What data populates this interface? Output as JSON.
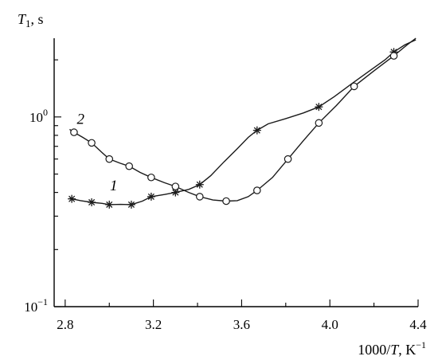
{
  "chart_data": {
    "type": "line",
    "title": "",
    "xlabel": "1000/T, K⁻¹",
    "ylabel": "T₁, s",
    "xlim": [
      2.75,
      4.4
    ],
    "ylim": [
      0.1,
      2.6
    ],
    "yscale": "log",
    "grid": false,
    "x_ticks": [
      {
        "value": 2.8,
        "label": "2.8"
      },
      {
        "value": 3.2,
        "label": "3.2"
      },
      {
        "value": 3.6,
        "label": "3.6"
      },
      {
        "value": 4.0,
        "label": "4.0"
      },
      {
        "value": 4.4,
        "label": "4.4"
      }
    ],
    "y_ticks": [
      {
        "value": 1.0,
        "base": "10",
        "exp": "0"
      },
      {
        "value": 0.1,
        "base": "10",
        "exp": "−1"
      }
    ],
    "series": [
      {
        "name": "1",
        "marker": "star",
        "points": [
          [
            2.83,
            0.37
          ],
          [
            2.92,
            0.355
          ],
          [
            3.0,
            0.345
          ],
          [
            3.1,
            0.345
          ],
          [
            3.19,
            0.38
          ],
          [
            3.3,
            0.4
          ],
          [
            3.41,
            0.44
          ],
          [
            3.67,
            0.85
          ],
          [
            3.95,
            1.13
          ],
          [
            4.29,
            2.2
          ]
        ],
        "line": [
          [
            2.82,
            0.372
          ],
          [
            2.87,
            0.362
          ],
          [
            2.92,
            0.355
          ],
          [
            2.97,
            0.35
          ],
          [
            3.0,
            0.345
          ],
          [
            3.05,
            0.346
          ],
          [
            3.1,
            0.345
          ],
          [
            3.15,
            0.36
          ],
          [
            3.19,
            0.38
          ],
          [
            3.25,
            0.39
          ],
          [
            3.3,
            0.4
          ],
          [
            3.36,
            0.415
          ],
          [
            3.41,
            0.44
          ],
          [
            3.46,
            0.49
          ],
          [
            3.52,
            0.58
          ],
          [
            3.58,
            0.68
          ],
          [
            3.63,
            0.78
          ],
          [
            3.67,
            0.85
          ],
          [
            3.72,
            0.92
          ],
          [
            3.8,
            0.98
          ],
          [
            3.88,
            1.05
          ],
          [
            3.95,
            1.13
          ],
          [
            4.02,
            1.28
          ],
          [
            4.1,
            1.5
          ],
          [
            4.18,
            1.75
          ],
          [
            4.25,
            2.0
          ],
          [
            4.29,
            2.2
          ],
          [
            4.34,
            2.4
          ],
          [
            4.39,
            2.55
          ]
        ]
      },
      {
        "name": "2",
        "marker": "circle",
        "points": [
          [
            2.84,
            0.83
          ],
          [
            2.92,
            0.73
          ],
          [
            3.0,
            0.6
          ],
          [
            3.09,
            0.55
          ],
          [
            3.19,
            0.48
          ],
          [
            3.3,
            0.43
          ],
          [
            3.41,
            0.38
          ],
          [
            3.53,
            0.36
          ],
          [
            3.67,
            0.41
          ],
          [
            3.81,
            0.6
          ],
          [
            3.95,
            0.93
          ],
          [
            4.11,
            1.45
          ],
          [
            4.29,
            2.1
          ]
        ],
        "line": [
          [
            2.82,
            0.86
          ],
          [
            2.84,
            0.83
          ],
          [
            2.88,
            0.78
          ],
          [
            2.92,
            0.73
          ],
          [
            2.96,
            0.66
          ],
          [
            3.0,
            0.6
          ],
          [
            3.05,
            0.57
          ],
          [
            3.09,
            0.55
          ],
          [
            3.14,
            0.51
          ],
          [
            3.19,
            0.48
          ],
          [
            3.25,
            0.45
          ],
          [
            3.3,
            0.43
          ],
          [
            3.36,
            0.4
          ],
          [
            3.41,
            0.38
          ],
          [
            3.47,
            0.365
          ],
          [
            3.53,
            0.36
          ],
          [
            3.58,
            0.362
          ],
          [
            3.63,
            0.38
          ],
          [
            3.67,
            0.41
          ],
          [
            3.74,
            0.48
          ],
          [
            3.81,
            0.6
          ],
          [
            3.88,
            0.75
          ],
          [
            3.95,
            0.93
          ],
          [
            4.03,
            1.15
          ],
          [
            4.11,
            1.45
          ],
          [
            4.2,
            1.75
          ],
          [
            4.29,
            2.1
          ],
          [
            4.35,
            2.4
          ],
          [
            4.39,
            2.6
          ]
        ]
      }
    ],
    "series_label_anchors": [
      {
        "text": "1",
        "x": 3.02,
        "y": 0.41
      },
      {
        "text": "2",
        "x": 2.87,
        "y": 0.92
      }
    ]
  }
}
